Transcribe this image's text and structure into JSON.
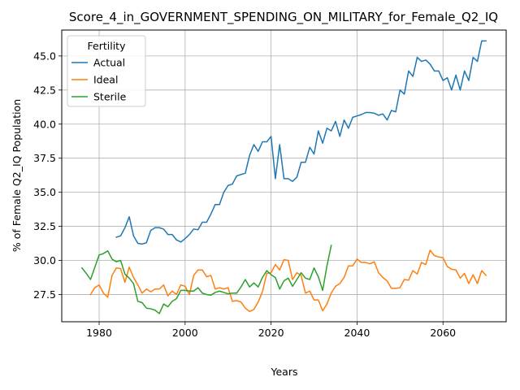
{
  "chart_data": {
    "type": "line",
    "title": "Score_4_in_GOVERNMENT_SPENDING_ON_MILITARY_for_Female_Q2_IQ",
    "xlabel": "Years",
    "ylabel": "% of Female Q2_IQ Population",
    "xlim": [
      1971.3,
      2074.7
    ],
    "ylim": [
      25.5,
      46.9
    ],
    "xticks": [
      1980,
      2000,
      2020,
      2040,
      2060
    ],
    "yticks": [
      27.5,
      30.0,
      32.5,
      35.0,
      37.5,
      40.0,
      42.5,
      45.0
    ],
    "xtick_labels": [
      "1980",
      "2000",
      "2020",
      "2040",
      "2060"
    ],
    "ytick_labels": [
      "27.5",
      "30.0",
      "32.5",
      "35.0",
      "37.5",
      "40.0",
      "42.5",
      "45.0"
    ],
    "grid": true,
    "legend": {
      "title": "Fertility",
      "position": "top-left"
    },
    "series": [
      {
        "name": "Actual",
        "color": "#1f77b4",
        "points": [
          [
            1984,
            31.7
          ],
          [
            1985,
            31.8
          ],
          [
            1986,
            32.4
          ],
          [
            1987,
            33.2
          ],
          [
            1988,
            31.8
          ],
          [
            1989,
            31.25
          ],
          [
            1990,
            31.2
          ],
          [
            1991,
            31.3
          ],
          [
            1992,
            32.2
          ],
          [
            1993,
            32.4
          ],
          [
            1994,
            32.4
          ],
          [
            1995,
            32.3
          ],
          [
            1996,
            31.9
          ],
          [
            1997,
            31.9
          ],
          [
            1998,
            31.5
          ],
          [
            1999,
            31.35
          ],
          [
            2000,
            31.6
          ],
          [
            2001,
            31.9
          ],
          [
            2002,
            32.3
          ],
          [
            2003,
            32.25
          ],
          [
            2004,
            32.8
          ],
          [
            2005,
            32.8
          ],
          [
            2006,
            33.4
          ],
          [
            2007,
            34.1
          ],
          [
            2008,
            34.1
          ],
          [
            2009,
            35.0
          ],
          [
            2010,
            35.5
          ],
          [
            2011,
            35.6
          ],
          [
            2012,
            36.2
          ],
          [
            2013,
            36.3
          ],
          [
            2014,
            36.4
          ],
          [
            2015,
            37.7
          ],
          [
            2016,
            38.5
          ],
          [
            2017,
            38.0
          ],
          [
            2018,
            38.7
          ],
          [
            2019,
            38.7
          ],
          [
            2020,
            39.1
          ],
          [
            2021,
            36.0
          ],
          [
            2022,
            38.5
          ],
          [
            2023,
            36.0
          ],
          [
            2024,
            36.0
          ],
          [
            2025,
            35.8
          ],
          [
            2026,
            36.1
          ],
          [
            2027,
            37.2
          ],
          [
            2028,
            37.2
          ],
          [
            2029,
            38.3
          ],
          [
            2030,
            37.8
          ],
          [
            2031,
            39.5
          ],
          [
            2032,
            38.6
          ],
          [
            2033,
            39.7
          ],
          [
            2034,
            39.5
          ],
          [
            2035,
            40.2
          ],
          [
            2036,
            39.1
          ],
          [
            2037,
            40.3
          ],
          [
            2038,
            39.7
          ],
          [
            2039,
            40.5
          ],
          [
            2040,
            40.6
          ],
          [
            2041,
            40.7
          ],
          [
            2042,
            40.85
          ],
          [
            2043,
            40.85
          ],
          [
            2044,
            40.8
          ],
          [
            2045,
            40.65
          ],
          [
            2046,
            40.75
          ],
          [
            2047,
            40.3
          ],
          [
            2048,
            41.0
          ],
          [
            2049,
            40.9
          ],
          [
            2050,
            42.5
          ],
          [
            2051,
            42.2
          ],
          [
            2052,
            43.9
          ],
          [
            2053,
            43.5
          ],
          [
            2054,
            44.9
          ],
          [
            2055,
            44.6
          ],
          [
            2056,
            44.7
          ],
          [
            2057,
            44.4
          ],
          [
            2058,
            43.9
          ],
          [
            2059,
            43.9
          ],
          [
            2060,
            43.2
          ],
          [
            2061,
            43.4
          ],
          [
            2062,
            42.5
          ],
          [
            2063,
            43.6
          ],
          [
            2064,
            42.5
          ],
          [
            2065,
            43.9
          ],
          [
            2066,
            43.2
          ],
          [
            2067,
            44.9
          ],
          [
            2068,
            44.6
          ],
          [
            2069,
            46.1
          ],
          [
            2070,
            46.1
          ]
        ]
      },
      {
        "name": "Ideal",
        "color": "#ff7f0e",
        "points": [
          [
            1978,
            27.5
          ],
          [
            1979,
            28.0
          ],
          [
            1980,
            28.2
          ],
          [
            1981,
            27.6
          ],
          [
            1982,
            27.3
          ],
          [
            1983,
            28.9
          ],
          [
            1984,
            29.45
          ],
          [
            1985,
            29.4
          ],
          [
            1986,
            28.4
          ],
          [
            1987,
            29.5
          ],
          [
            1988,
            28.75
          ],
          [
            1989,
            28.2
          ],
          [
            1990,
            27.6
          ],
          [
            1991,
            27.9
          ],
          [
            1992,
            27.7
          ],
          [
            1993,
            27.9
          ],
          [
            1994,
            27.9
          ],
          [
            1995,
            28.2
          ],
          [
            1996,
            27.4
          ],
          [
            1997,
            27.75
          ],
          [
            1998,
            27.5
          ],
          [
            1999,
            28.2
          ],
          [
            2000,
            28.1
          ],
          [
            2001,
            27.5
          ],
          [
            2002,
            28.9
          ],
          [
            2003,
            29.3
          ],
          [
            2004,
            29.3
          ],
          [
            2005,
            28.8
          ],
          [
            2006,
            28.9
          ],
          [
            2007,
            27.9
          ],
          [
            2008,
            28.0
          ],
          [
            2009,
            27.9
          ],
          [
            2010,
            28.0
          ],
          [
            2011,
            27.0
          ],
          [
            2012,
            27.05
          ],
          [
            2013,
            26.95
          ],
          [
            2014,
            26.5
          ],
          [
            2015,
            26.25
          ],
          [
            2016,
            26.4
          ],
          [
            2017,
            26.95
          ],
          [
            2018,
            27.7
          ],
          [
            2019,
            29.05
          ],
          [
            2020,
            29.1
          ],
          [
            2021,
            29.7
          ],
          [
            2022,
            29.3
          ],
          [
            2023,
            30.05
          ],
          [
            2024,
            30.0
          ],
          [
            2025,
            28.6
          ],
          [
            2026,
            29.1
          ],
          [
            2027,
            28.9
          ],
          [
            2028,
            27.6
          ],
          [
            2029,
            27.75
          ],
          [
            2030,
            27.1
          ],
          [
            2031,
            27.1
          ],
          [
            2032,
            26.3
          ],
          [
            2033,
            26.8
          ],
          [
            2034,
            27.6
          ],
          [
            2035,
            28.1
          ],
          [
            2036,
            28.3
          ],
          [
            2037,
            28.75
          ],
          [
            2038,
            29.6
          ],
          [
            2039,
            29.6
          ],
          [
            2040,
            30.1
          ],
          [
            2041,
            29.85
          ],
          [
            2042,
            29.85
          ],
          [
            2043,
            29.75
          ],
          [
            2044,
            29.9
          ],
          [
            2045,
            29.1
          ],
          [
            2046,
            28.75
          ],
          [
            2047,
            28.5
          ],
          [
            2048,
            27.95
          ],
          [
            2049,
            27.95
          ],
          [
            2050,
            28.0
          ],
          [
            2051,
            28.6
          ],
          [
            2052,
            28.55
          ],
          [
            2053,
            29.25
          ],
          [
            2054,
            29.0
          ],
          [
            2055,
            29.85
          ],
          [
            2056,
            29.7
          ],
          [
            2057,
            30.75
          ],
          [
            2058,
            30.35
          ],
          [
            2059,
            30.25
          ],
          [
            2060,
            30.2
          ],
          [
            2061,
            29.55
          ],
          [
            2062,
            29.35
          ],
          [
            2063,
            29.3
          ],
          [
            2064,
            28.7
          ],
          [
            2065,
            29.05
          ],
          [
            2066,
            28.3
          ],
          [
            2067,
            28.95
          ],
          [
            2068,
            28.3
          ],
          [
            2069,
            29.25
          ],
          [
            2070,
            28.9
          ]
        ]
      },
      {
        "name": "Sterile",
        "color": "#2ca02c",
        "points": [
          [
            1976,
            29.45
          ],
          [
            1977,
            29.05
          ],
          [
            1978,
            28.6
          ],
          [
            1979,
            29.5
          ],
          [
            1980,
            30.4
          ],
          [
            1981,
            30.5
          ],
          [
            1982,
            30.7
          ],
          [
            1983,
            30.1
          ],
          [
            1984,
            29.9
          ],
          [
            1985,
            30.0
          ],
          [
            1986,
            29.0
          ],
          [
            1987,
            28.7
          ],
          [
            1988,
            28.3
          ],
          [
            1989,
            27.0
          ],
          [
            1990,
            26.9
          ],
          [
            1991,
            26.5
          ],
          [
            1992,
            26.45
          ],
          [
            1993,
            26.35
          ],
          [
            1994,
            26.1
          ],
          [
            1995,
            26.8
          ],
          [
            1996,
            26.6
          ],
          [
            1997,
            27.0
          ],
          [
            1998,
            27.2
          ],
          [
            1999,
            27.8
          ],
          [
            2000,
            27.8
          ],
          [
            2001,
            27.75
          ],
          [
            2002,
            27.75
          ],
          [
            2003,
            28.0
          ],
          [
            2004,
            27.6
          ],
          [
            2005,
            27.5
          ],
          [
            2006,
            27.45
          ],
          [
            2007,
            27.65
          ],
          [
            2008,
            27.75
          ],
          [
            2009,
            27.65
          ],
          [
            2010,
            27.55
          ],
          [
            2011,
            27.6
          ],
          [
            2012,
            27.6
          ],
          [
            2013,
            28.05
          ],
          [
            2014,
            28.6
          ],
          [
            2015,
            28.05
          ],
          [
            2016,
            28.35
          ],
          [
            2017,
            28.05
          ],
          [
            2018,
            28.75
          ],
          [
            2019,
            29.25
          ],
          [
            2020,
            28.95
          ],
          [
            2021,
            28.75
          ],
          [
            2022,
            27.9
          ],
          [
            2023,
            28.5
          ],
          [
            2024,
            28.7
          ],
          [
            2025,
            28.1
          ],
          [
            2026,
            28.6
          ],
          [
            2027,
            29.1
          ],
          [
            2028,
            28.7
          ],
          [
            2029,
            28.6
          ],
          [
            2030,
            29.45
          ],
          [
            2031,
            28.8
          ],
          [
            2032,
            27.8
          ],
          [
            2033,
            29.6
          ],
          [
            2034,
            31.1
          ]
        ]
      }
    ]
  }
}
